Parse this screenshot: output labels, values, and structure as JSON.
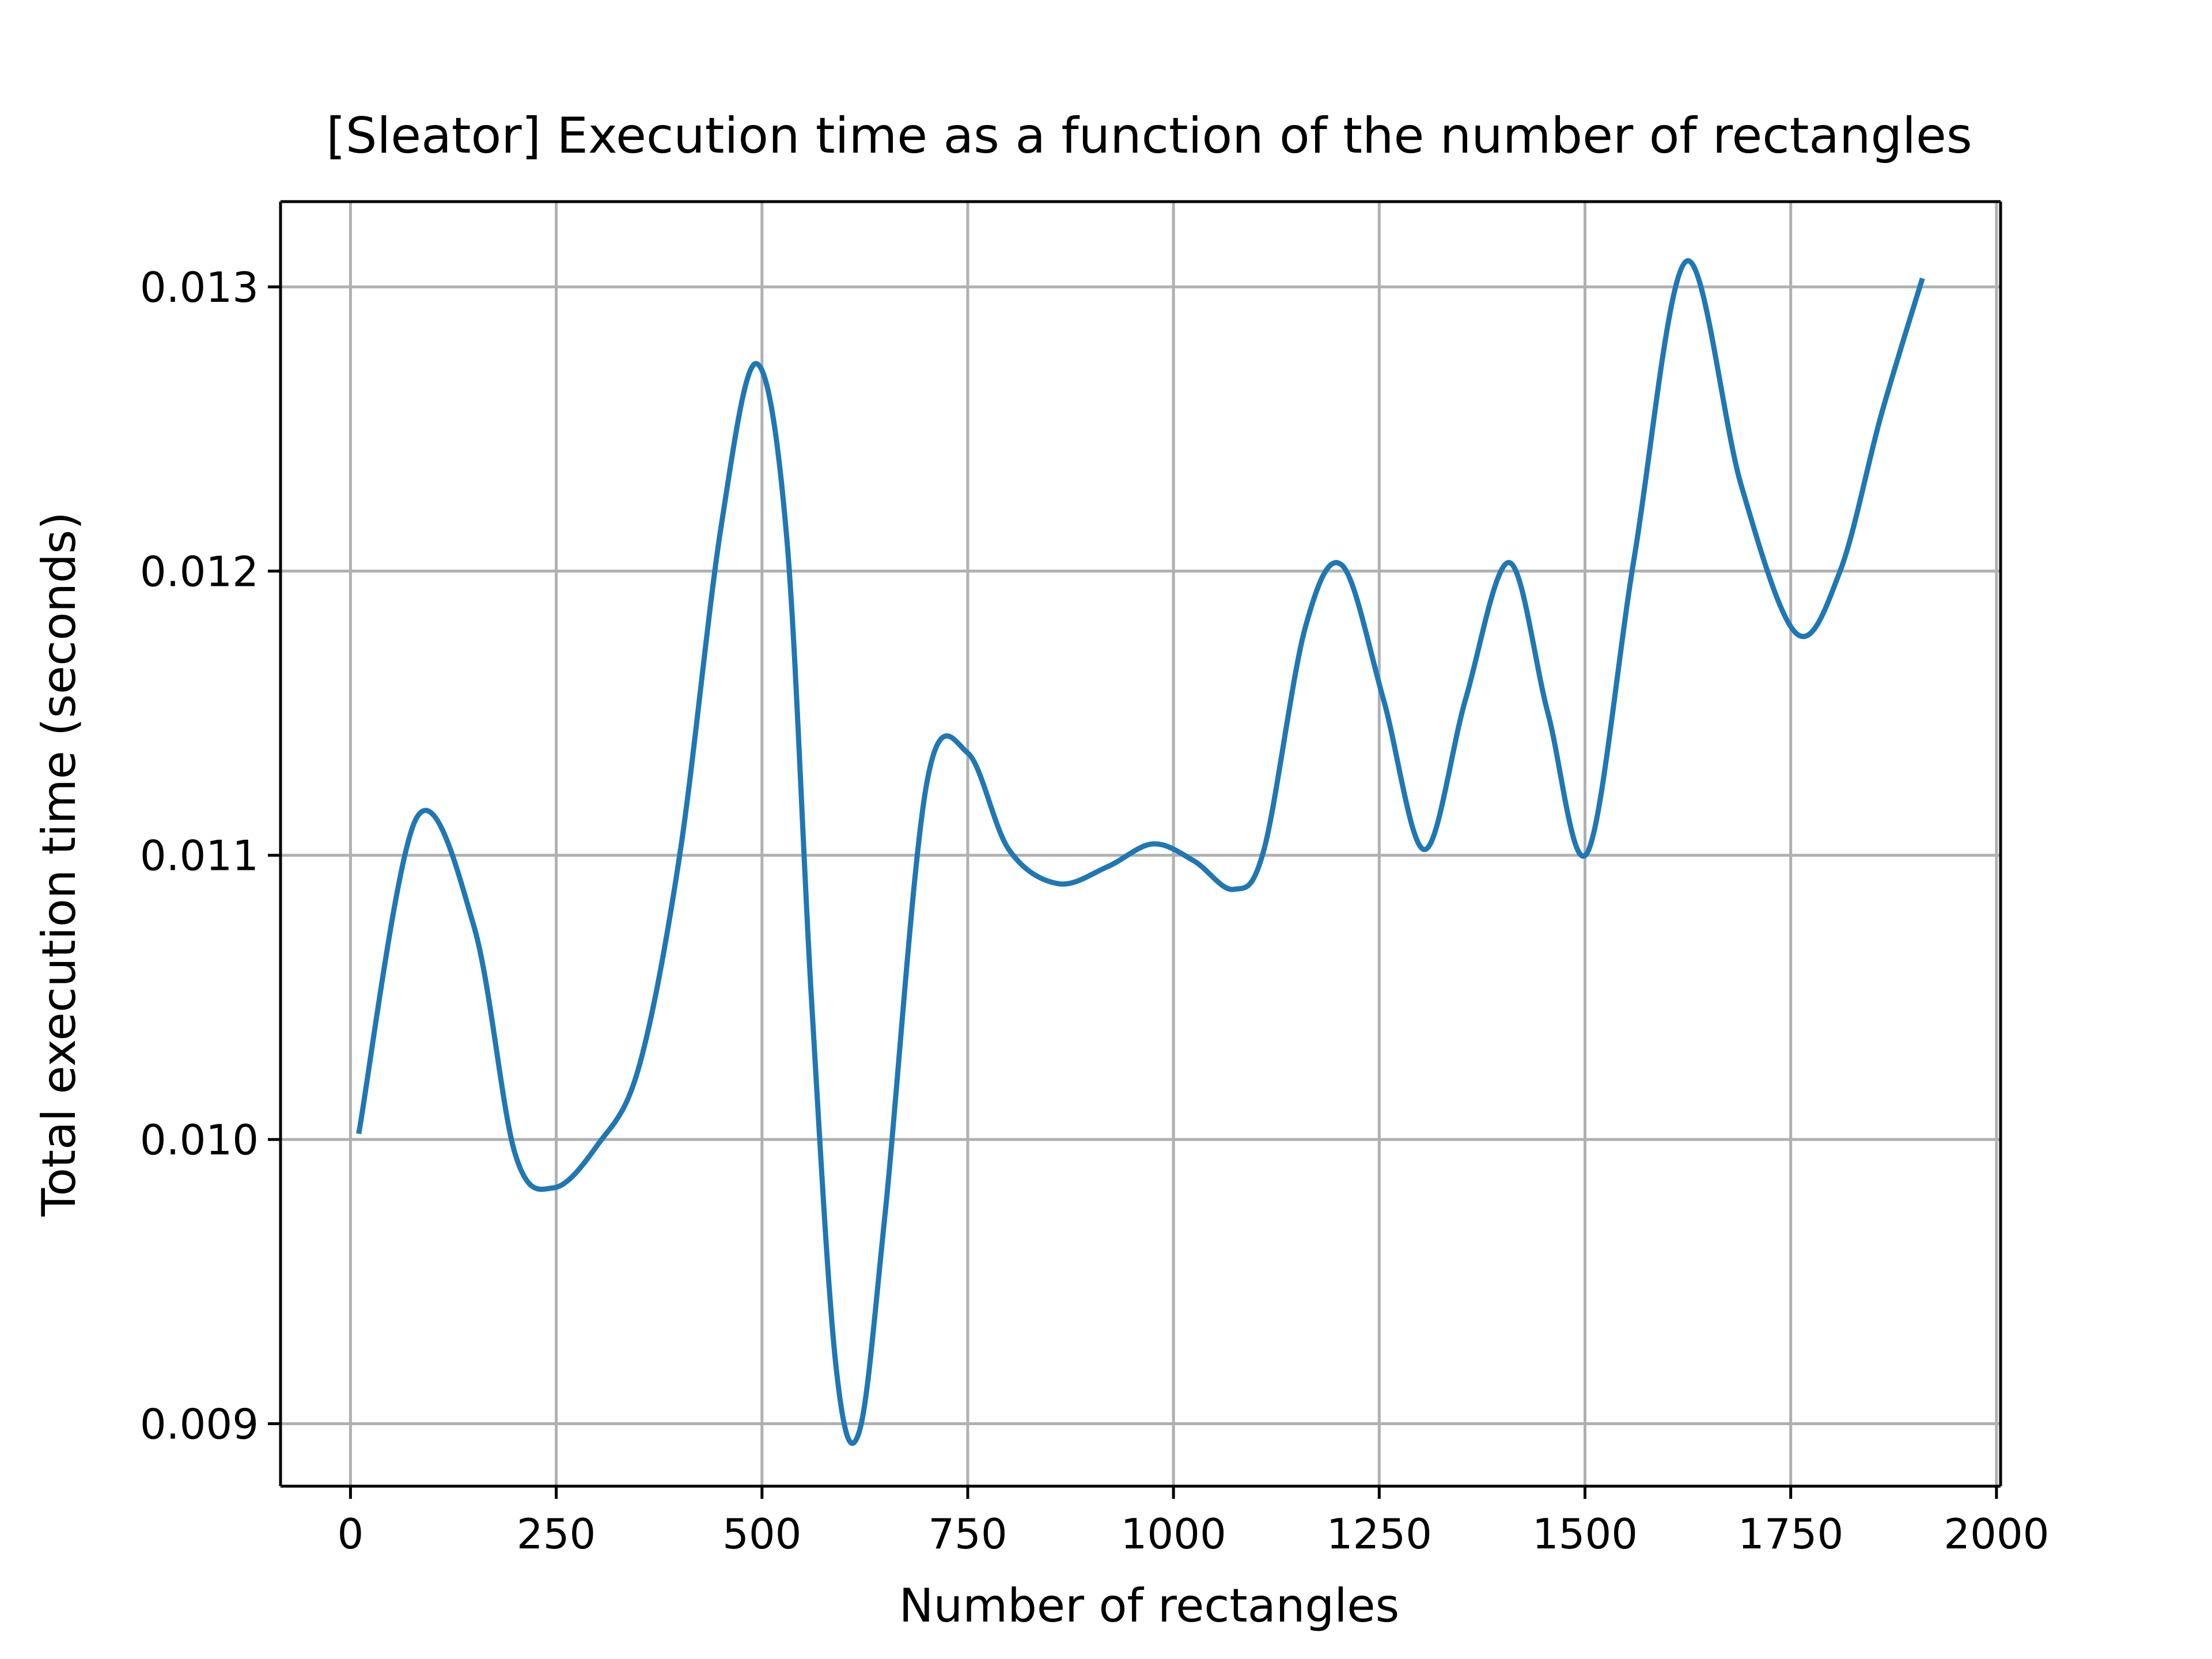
{
  "chart_data": {
    "type": "line",
    "title": "[Sleator] Execution time as a function of the number of rectangles",
    "xlabel": "Number of rectangles",
    "ylabel": "Total execution time (seconds)",
    "xlim": [
      -85,
      2005
    ],
    "ylim": [
      0.00878,
      0.0133
    ],
    "xticks": [
      0,
      250,
      500,
      750,
      1000,
      1250,
      1500,
      1750,
      2000
    ],
    "xtick_labels": [
      "0",
      "250",
      "500",
      "750",
      "1000",
      "1250",
      "1500",
      "1750",
      "2000"
    ],
    "yticks": [
      0.009,
      0.01,
      0.011,
      0.012,
      0.013
    ],
    "ytick_labels": [
      "0.009",
      "0.010",
      "0.011",
      "0.012",
      "0.013"
    ],
    "grid": true,
    "legend": "none",
    "colors": {
      "line": "#1f77b4",
      "grid": "#b0b0b0",
      "axes": "#000000",
      "background": "#ffffff"
    },
    "series": [
      {
        "x": [
          10,
          80,
          150,
          200,
          247,
          300,
          350,
          400,
          450,
          493,
          530,
          560,
          590,
          618,
          650,
          700,
          750,
          800,
          860,
          920,
          975,
          1025,
          1073,
          1110,
          1160,
          1205,
          1255,
          1305,
          1355,
          1408,
          1455,
          1503,
          1560,
          1623,
          1690,
          1757,
          1810,
          1860,
          1910
        ],
        "y": [
          0.01002,
          0.01113,
          0.01075,
          0.00995,
          0.00983,
          0.00998,
          0.01025,
          0.011,
          0.01215,
          0.01273,
          0.01212,
          0.0105,
          0.0092,
          0.00897,
          0.00975,
          0.01125,
          0.01136,
          0.01102,
          0.0109,
          0.01096,
          0.01104,
          0.01098,
          0.01088,
          0.01102,
          0.0118,
          0.01202,
          0.01155,
          0.01102,
          0.01155,
          0.01203,
          0.0115,
          0.01101,
          0.01205,
          0.01309,
          0.0123,
          0.01178,
          0.012,
          0.01255,
          0.01303
        ]
      }
    ]
  }
}
